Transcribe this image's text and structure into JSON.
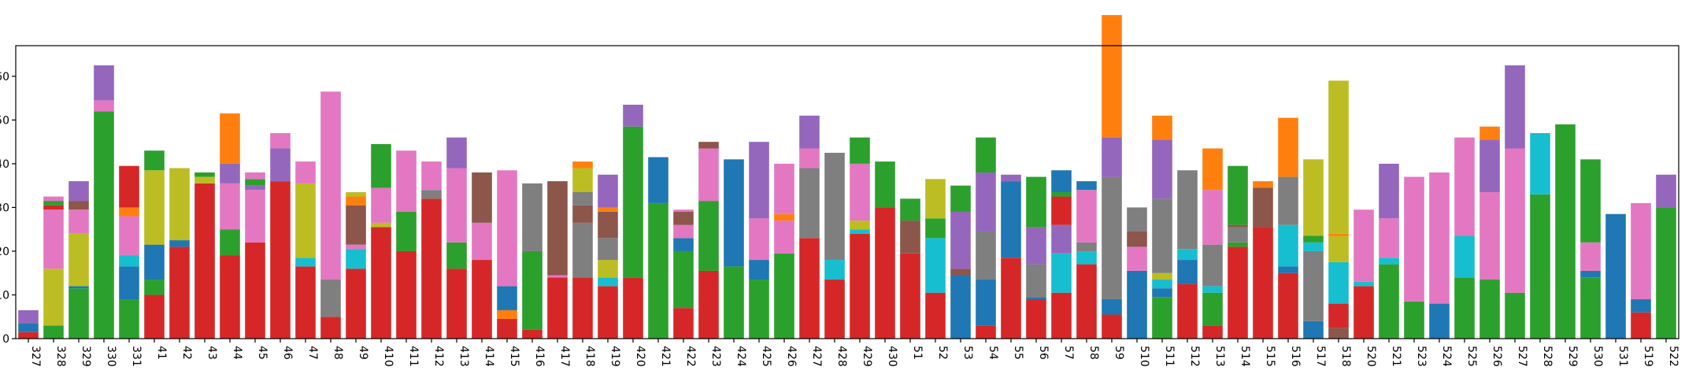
{
  "chart_data": {
    "type": "bar",
    "stacked": true,
    "title": "",
    "xlabel": "",
    "ylabel": "",
    "ylim": [
      0,
      67
    ],
    "ytick_values": [
      0,
      10,
      20,
      30,
      40,
      50,
      60
    ],
    "categories": [
      "327",
      "328",
      "329",
      "330",
      "331",
      "41",
      "42",
      "43",
      "44",
      "45",
      "46",
      "47",
      "48",
      "49",
      "410",
      "411",
      "412",
      "413",
      "414",
      "415",
      "416",
      "417",
      "418",
      "419",
      "420",
      "421",
      "422",
      "423",
      "424",
      "425",
      "426",
      "427",
      "428",
      "429",
      "430",
      "51",
      "52",
      "53",
      "54",
      "55",
      "56",
      "57",
      "58",
      "59",
      "510",
      "511",
      "512",
      "513",
      "514",
      "515",
      "516",
      "517",
      "518",
      "520",
      "521",
      "523",
      "524",
      "525",
      "526",
      "527",
      "528",
      "529",
      "530",
      "531",
      "519",
      "522"
    ],
    "palette": {
      "red": "#d62728",
      "blue": "#1f77b4",
      "green": "#2ca02c",
      "olive": "#bcbd22",
      "pink": "#e377c2",
      "brown": "#8c564b",
      "orange": "#ff7f0e",
      "purple": "#9467bd",
      "gray": "#7f7f7f",
      "cyan": "#17becf"
    },
    "stacks": [
      [
        [
          "red",
          1.5
        ],
        [
          "blue",
          2
        ],
        [
          "purple",
          3
        ]
      ],
      [
        [
          "green",
          3
        ],
        [
          "olive",
          13
        ],
        [
          "pink",
          13.5
        ],
        [
          "red",
          1
        ],
        [
          "green",
          1
        ],
        [
          "pink",
          1
        ]
      ],
      [
        [
          "green",
          11.5
        ],
        [
          "blue",
          0.5
        ],
        [
          "olive",
          12
        ],
        [
          "pink",
          5.5
        ],
        [
          "brown",
          2
        ],
        [
          "purple",
          4.5
        ]
      ],
      [
        [
          "green",
          52
        ],
        [
          "pink",
          2.5
        ],
        [
          "purple",
          8
        ]
      ],
      [
        [
          "green",
          9
        ],
        [
          "blue",
          7.5
        ],
        [
          "cyan",
          2.5
        ],
        [
          "pink",
          9
        ],
        [
          "orange",
          2
        ],
        [
          "red",
          9.5
        ]
      ],
      [
        [
          "red",
          10
        ],
        [
          "green",
          3.5
        ],
        [
          "blue",
          8
        ],
        [
          "olive",
          17
        ],
        [
          "green",
          4.5
        ]
      ],
      [
        [
          "red",
          21
        ],
        [
          "blue",
          1.5
        ],
        [
          "olive",
          16.5
        ]
      ],
      [
        [
          "red",
          35.5
        ],
        [
          "olive",
          1.5
        ],
        [
          "green",
          1
        ]
      ],
      [
        [
          "red",
          19
        ],
        [
          "green",
          6
        ],
        [
          "pink",
          10.5
        ],
        [
          "purple",
          4.5
        ],
        [
          "orange",
          11.5
        ]
      ],
      [
        [
          "red",
          22
        ],
        [
          "pink",
          12
        ],
        [
          "purple",
          1
        ],
        [
          "green",
          1.5
        ],
        [
          "pink",
          1.5
        ]
      ],
      [
        [
          "red",
          36
        ],
        [
          "purple",
          7.5
        ],
        [
          "pink",
          3.5
        ]
      ],
      [
        [
          "red",
          16.5
        ],
        [
          "cyan",
          2
        ],
        [
          "olive",
          17
        ],
        [
          "pink",
          5
        ]
      ],
      [
        [
          "red",
          5
        ],
        [
          "gray",
          8.5
        ],
        [
          "pink",
          43
        ]
      ],
      [
        [
          "red",
          16
        ],
        [
          "cyan",
          4.5
        ],
        [
          "pink",
          1
        ],
        [
          "brown",
          9
        ],
        [
          "orange",
          2
        ],
        [
          "olive",
          1
        ]
      ],
      [
        [
          "red",
          25.5
        ],
        [
          "olive",
          1
        ],
        [
          "pink",
          8
        ],
        [
          "green",
          10
        ]
      ],
      [
        [
          "red",
          20
        ],
        [
          "green",
          9
        ],
        [
          "pink",
          14
        ]
      ],
      [
        [
          "red",
          32
        ],
        [
          "gray",
          2
        ],
        [
          "pink",
          6.5
        ]
      ],
      [
        [
          "red",
          16
        ],
        [
          "green",
          6
        ],
        [
          "pink",
          17
        ],
        [
          "purple",
          7
        ]
      ],
      [
        [
          "red",
          18
        ],
        [
          "pink",
          8.5
        ],
        [
          "brown",
          11.5
        ]
      ],
      [
        [
          "red",
          4.5
        ],
        [
          "orange",
          2
        ],
        [
          "blue",
          5.5
        ],
        [
          "pink",
          26.5
        ]
      ],
      [
        [
          "red",
          2
        ],
        [
          "green",
          18
        ],
        [
          "gray",
          15.5
        ]
      ],
      [
        [
          "red",
          14
        ],
        [
          "pink",
          0.5
        ],
        [
          "brown",
          21.5
        ]
      ],
      [
        [
          "red",
          14
        ],
        [
          "gray",
          12.5
        ],
        [
          "brown",
          4
        ],
        [
          "gray",
          3
        ],
        [
          "olive",
          5.5
        ],
        [
          "orange",
          1.5
        ]
      ],
      [
        [
          "red",
          12
        ],
        [
          "cyan",
          2
        ],
        [
          "olive",
          4
        ],
        [
          "gray",
          5
        ],
        [
          "brown",
          6
        ],
        [
          "orange",
          1
        ],
        [
          "purple",
          7.5
        ]
      ],
      [
        [
          "red",
          14
        ],
        [
          "green",
          34.5
        ],
        [
          "purple",
          5
        ]
      ],
      [
        [
          "green",
          31
        ],
        [
          "blue",
          10.5
        ]
      ],
      [
        [
          "red",
          7
        ],
        [
          "green",
          13
        ],
        [
          "blue",
          3
        ],
        [
          "pink",
          3
        ],
        [
          "brown",
          3
        ],
        [
          "pink",
          0.5
        ]
      ],
      [
        [
          "red",
          15.5
        ],
        [
          "green",
          16
        ],
        [
          "pink",
          12
        ],
        [
          "brown",
          1.5
        ]
      ],
      [
        [
          "green",
          16.5
        ],
        [
          "blue",
          24.5
        ]
      ],
      [
        [
          "green",
          13.5
        ],
        [
          "blue",
          4.5
        ],
        [
          "pink",
          9.5
        ],
        [
          "purple",
          17.5
        ]
      ],
      [
        [
          "green",
          19.5
        ],
        [
          "pink",
          7.5
        ],
        [
          "orange",
          1.5
        ],
        [
          "pink",
          11.5
        ]
      ],
      [
        [
          "red",
          23
        ],
        [
          "gray",
          16
        ],
        [
          "pink",
          4.5
        ],
        [
          "purple",
          7.5
        ]
      ],
      [
        [
          "red",
          13.5
        ],
        [
          "cyan",
          4.5
        ],
        [
          "gray",
          24.5
        ]
      ],
      [
        [
          "red",
          24
        ],
        [
          "cyan",
          1
        ],
        [
          "olive",
          2
        ],
        [
          "pink",
          13
        ],
        [
          "green",
          6
        ]
      ],
      [
        [
          "red",
          30
        ],
        [
          "green",
          10.5
        ]
      ],
      [
        [
          "red",
          19.5
        ],
        [
          "brown",
          7.5
        ],
        [
          "green",
          5
        ]
      ],
      [
        [
          "red",
          10.5
        ],
        [
          "cyan",
          12.5
        ],
        [
          "green",
          4.5
        ],
        [
          "olive",
          9
        ]
      ],
      [
        [
          "blue",
          14.5
        ],
        [
          "brown",
          1.5
        ],
        [
          "purple",
          13
        ],
        [
          "green",
          6
        ]
      ],
      [
        [
          "red",
          3
        ],
        [
          "blue",
          10.5
        ],
        [
          "gray",
          11
        ],
        [
          "purple",
          13.5
        ],
        [
          "green",
          8
        ]
      ],
      [
        [
          "red",
          18.5
        ],
        [
          "blue",
          17.5
        ],
        [
          "purple",
          1.5
        ]
      ],
      [
        [
          "red",
          9
        ],
        [
          "blue",
          0.5
        ],
        [
          "gray",
          7.5
        ],
        [
          "purple",
          8.5
        ],
        [
          "green",
          11.5
        ]
      ],
      [
        [
          "red",
          10.5
        ],
        [
          "cyan",
          9
        ],
        [
          "purple",
          6.5
        ],
        [
          "red",
          6.5
        ],
        [
          "green",
          1
        ],
        [
          "blue",
          5
        ]
      ],
      [
        [
          "red",
          17
        ],
        [
          "cyan",
          3
        ],
        [
          "gray",
          2
        ],
        [
          "pink",
          12
        ],
        [
          "blue",
          2
        ]
      ],
      [
        [
          "red",
          5.5
        ],
        [
          "blue",
          3.5
        ],
        [
          "gray",
          28
        ],
        [
          "purple",
          9
        ],
        [
          "orange",
          28
        ]
      ],
      [
        [
          "blue",
          15.5
        ],
        [
          "pink",
          5.5
        ],
        [
          "brown",
          3.5
        ],
        [
          "gray",
          5.5
        ]
      ],
      [
        [
          "green",
          9.5
        ],
        [
          "blue",
          2
        ],
        [
          "cyan",
          2
        ],
        [
          "olive",
          1.5
        ],
        [
          "gray",
          17
        ],
        [
          "purple",
          13.5
        ],
        [
          "orange",
          5.5
        ]
      ],
      [
        [
          "red",
          12.5
        ],
        [
          "blue",
          5.5
        ],
        [
          "cyan",
          2.5
        ],
        [
          "gray",
          18
        ]
      ],
      [
        [
          "red",
          3
        ],
        [
          "green",
          7.5
        ],
        [
          "cyan",
          1.5
        ],
        [
          "gray",
          9.5
        ],
        [
          "pink",
          12.5
        ],
        [
          "orange",
          9.5
        ]
      ],
      [
        [
          "red",
          21
        ],
        [
          "green",
          1
        ],
        [
          "gray",
          3.5
        ],
        [
          "brown",
          0.5
        ],
        [
          "green",
          13.5
        ]
      ],
      [
        [
          "red",
          25.5
        ],
        [
          "brown",
          9
        ],
        [
          "orange",
          1.5
        ]
      ],
      [
        [
          "red",
          15
        ],
        [
          "blue",
          1.5
        ],
        [
          "cyan",
          9.5
        ],
        [
          "gray",
          11
        ],
        [
          "orange",
          13.5
        ]
      ],
      [
        [
          "blue",
          4
        ],
        [
          "gray",
          16
        ],
        [
          "cyan",
          2
        ],
        [
          "green",
          1.5
        ],
        [
          "olive",
          17.5
        ]
      ],
      [
        [
          "brown",
          2.5
        ],
        [
          "red",
          5.5
        ],
        [
          "cyan",
          9.5
        ],
        [
          "olive",
          6
        ],
        [
          "orange",
          0.5
        ],
        [
          "olive",
          35
        ]
      ],
      [
        [
          "red",
          12
        ],
        [
          "cyan",
          1
        ],
        [
          "pink",
          16.5
        ]
      ],
      [
        [
          "green",
          17
        ],
        [
          "cyan",
          1.5
        ],
        [
          "pink",
          9
        ],
        [
          "purple",
          12.5
        ]
      ],
      [
        [
          "green",
          8.5
        ],
        [
          "pink",
          28.5
        ]
      ],
      [
        [
          "blue",
          8
        ],
        [
          "pink",
          30
        ]
      ],
      [
        [
          "green",
          14
        ],
        [
          "cyan",
          9.5
        ],
        [
          "pink",
          22.5
        ]
      ],
      [
        [
          "green",
          13.5
        ],
        [
          "pink",
          20
        ],
        [
          "purple",
          12
        ],
        [
          "orange",
          3
        ]
      ],
      [
        [
          "green",
          10.5
        ],
        [
          "pink",
          33
        ],
        [
          "purple",
          19
        ]
      ],
      [
        [
          "green",
          33
        ],
        [
          "cyan",
          14
        ]
      ],
      [
        [
          "green",
          49
        ]
      ],
      [
        [
          "green",
          14
        ],
        [
          "blue",
          1.5
        ],
        [
          "pink",
          6.5
        ],
        [
          "green",
          19
        ]
      ],
      [
        [
          "blue",
          28.5
        ]
      ],
      [
        [
          "red",
          6
        ],
        [
          "blue",
          3
        ],
        [
          "pink",
          22
        ]
      ],
      [
        [
          "green",
          30
        ],
        [
          "purple",
          7.5
        ]
      ]
    ]
  }
}
